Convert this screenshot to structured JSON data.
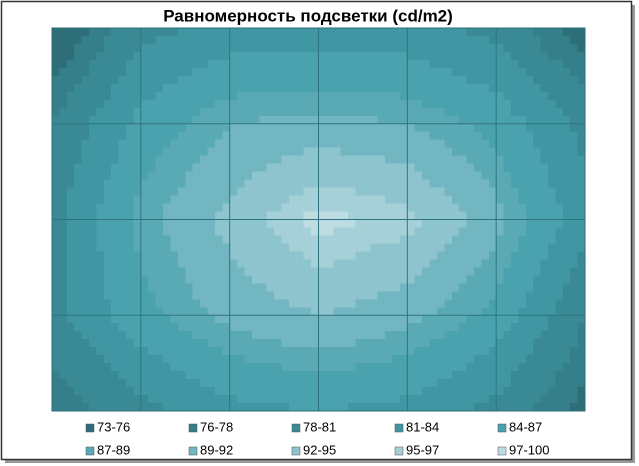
{
  "chart_data": {
    "type": "contour",
    "title": "Равномерность подсветки (cd/m2)",
    "z": [
      [
        73,
        80,
        82,
        82,
        82,
        80,
        74
      ],
      [
        78,
        85,
        89,
        90,
        89,
        86,
        80
      ],
      [
        80,
        88,
        93,
        98,
        96,
        90,
        82
      ],
      [
        80,
        86,
        90,
        92,
        90,
        86,
        78
      ],
      [
        76,
        80,
        83,
        84,
        83,
        80,
        75
      ]
    ],
    "bands": [
      {
        "name": "73-76",
        "color": "#2e6e78",
        "min": 73,
        "max": 76
      },
      {
        "name": "76-78",
        "color": "#347f8a",
        "min": 76,
        "max": 78
      },
      {
        "name": "78-81",
        "color": "#3a8a96",
        "min": 78,
        "max": 81
      },
      {
        "name": "81-84",
        "color": "#4096a3",
        "min": 81,
        "max": 84
      },
      {
        "name": "84-87",
        "color": "#4aa2ae",
        "min": 84,
        "max": 87
      },
      {
        "name": "87-89",
        "color": "#5aaab6",
        "min": 87,
        "max": 89
      },
      {
        "name": "89-92",
        "color": "#72b6c1",
        "min": 89,
        "max": 92
      },
      {
        "name": "92-95",
        "color": "#8ec4cd",
        "min": 92,
        "max": 95
      },
      {
        "name": "95-97",
        "color": "#a6d0d8",
        "min": 95,
        "max": 97
      },
      {
        "name": "97-100",
        "color": "#bddde3",
        "min": 97,
        "max": 100
      }
    ],
    "grid": true
  }
}
